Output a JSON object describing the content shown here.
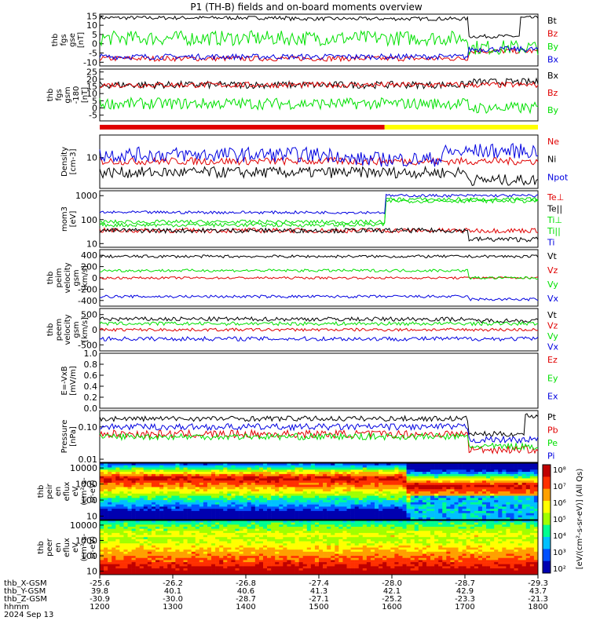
{
  "title": "P1 (TH-B) fields and on-board moments overview",
  "colors": {
    "black": "#000000",
    "red": "#e00000",
    "green": "#00e000",
    "blue": "#0000e0",
    "yellow": "#ffff00"
  },
  "chart_data": [
    {
      "type": "line",
      "ylabel": [
        "thb",
        "fgs",
        "gse",
        "[nT]"
      ],
      "yticks": [
        "15",
        "10",
        "5",
        "0",
        "-5",
        "-10"
      ],
      "ylim": [
        -12,
        16
      ],
      "series": [
        {
          "name": "Bt",
          "color": "#000000",
          "segments": [
            [
              0,
              0.43,
              14
            ],
            [
              0.43,
              0.84,
              13.5
            ],
            [
              0.84,
              0.96,
              4
            ],
            [
              0.96,
              1,
              14
            ]
          ],
          "noise": 1
        },
        {
          "name": "Bz",
          "color": "#e00000",
          "segments": [
            [
              0,
              0.84,
              -8
            ],
            [
              0.84,
              1,
              -4
            ]
          ],
          "noise": 1.4
        },
        {
          "name": "By",
          "color": "#00e000",
          "segments": [
            [
              0,
              0.84,
              3
            ],
            [
              0.84,
              1,
              -2
            ]
          ],
          "noise": 4
        },
        {
          "name": "Bx",
          "color": "#0000e0",
          "segments": [
            [
              0,
              0.84,
              -7
            ],
            [
              0.84,
              1,
              -3
            ]
          ],
          "noise": 1.5
        }
      ]
    },
    {
      "type": "line",
      "ylabel": [
        "thb",
        "fgs",
        "gsm",
        "-180",
        "[nT]"
      ],
      "yticks": [
        "25",
        "20",
        "15",
        "10",
        "5",
        "0",
        "-5"
      ],
      "ylim": [
        -9,
        27
      ],
      "series": [
        {
          "name": "Bx",
          "color": "#000000",
          "segments": [
            [
              0,
              0.84,
              16
            ],
            [
              0.84,
              1,
              18
            ]
          ],
          "noise": 2.5
        },
        {
          "name": "Bz",
          "color": "#e00000",
          "segments": [
            [
              0,
              1,
              16
            ]
          ],
          "noise": 2
        },
        {
          "name": "By",
          "color": "#00e000",
          "segments": [
            [
              0,
              0.84,
              3
            ],
            [
              0.84,
              1,
              0
            ]
          ],
          "noise": 4
        }
      ]
    },
    {
      "type": "line",
      "ylabel": [
        "Density",
        "[cm-3]"
      ],
      "yticks": [
        "10"
      ],
      "log": true,
      "ylim": [
        1.5,
        40
      ],
      "series": [
        {
          "name": "Ne",
          "color": "#e00000",
          "segments": [
            [
              0,
              0.84,
              8
            ],
            [
              0.84,
              1,
              8
            ]
          ],
          "noise": 0.1
        },
        {
          "name": "Ni",
          "color": "#000000",
          "segments": [
            [
              0,
              0.84,
              4
            ],
            [
              0.84,
              1,
              2.5
            ]
          ],
          "noise": 0.15
        },
        {
          "name": "Npot",
          "color": "#0000e0",
          "segments": [
            [
              0,
              0.55,
              12
            ],
            [
              0.55,
              0.78,
              9
            ],
            [
              0.78,
              0.84,
              14
            ],
            [
              0.84,
              1,
              15
            ]
          ],
          "noise": 0.2
        }
      ]
    },
    {
      "type": "line",
      "ylabel": [
        "mom3",
        "[eV]"
      ],
      "yticks": [
        "1000",
        "100",
        "10"
      ],
      "log": true,
      "ylim": [
        7,
        1600
      ],
      "series": [
        {
          "name": "Te⊥",
          "color": "#e00000",
          "segments": [
            [
              0,
              1,
              35
            ]
          ],
          "noise": 0.1
        },
        {
          "name": "Te||",
          "color": "#000000",
          "segments": [
            [
              0,
              0.84,
              35
            ],
            [
              0.84,
              1,
              15
            ]
          ],
          "noise": 0.1
        },
        {
          "name": "Ti⊥",
          "color": "#00e000",
          "segments": [
            [
              0,
              0.65,
              80
            ],
            [
              0.65,
              1,
              700
            ]
          ],
          "noise": 0.08
        },
        {
          "name": "Ti||",
          "color": "#00e000",
          "segments": [
            [
              0,
              0.65,
              60
            ],
            [
              0.65,
              1,
              600
            ]
          ],
          "noise": 0.08
        },
        {
          "name": "Ti",
          "color": "#0000e0",
          "segments": [
            [
              0,
              0.65,
              200
            ],
            [
              0.65,
              1,
              1000
            ]
          ],
          "noise": 0.06
        }
      ]
    },
    {
      "type": "line",
      "ylabel": [
        "thb",
        "peim",
        "velocity",
        "gsm",
        "[km/s]"
      ],
      "yticks": [
        "400",
        "200",
        "0",
        "-200",
        "-400"
      ],
      "ylim": [
        -500,
        500
      ],
      "series": [
        {
          "name": "Vt",
          "color": "#000000",
          "segments": [
            [
              0,
              1,
              380
            ]
          ],
          "noise": 25
        },
        {
          "name": "Vz",
          "color": "#e00000",
          "segments": [
            [
              0,
              1,
              0
            ]
          ],
          "noise": 20
        },
        {
          "name": "Vy",
          "color": "#00e000",
          "segments": [
            [
              0,
              0.84,
              130
            ],
            [
              0.84,
              1,
              0
            ]
          ],
          "noise": 25
        },
        {
          "name": "Vx",
          "color": "#0000e0",
          "segments": [
            [
              0,
              0.84,
              -330
            ],
            [
              0.84,
              1,
              -380
            ]
          ],
          "noise": 25
        }
      ]
    },
    {
      "type": "line",
      "ylabel": [
        "thb",
        "peem",
        "velocity",
        "gsm",
        "[km/s]"
      ],
      "yticks": [
        "500",
        "0",
        "-500"
      ],
      "ylim": [
        -700,
        700
      ],
      "series": [
        {
          "name": "Vt",
          "color": "#000000",
          "segments": [
            [
              0,
              0.84,
              350
            ],
            [
              0.84,
              1,
              300
            ]
          ],
          "noise": 70
        },
        {
          "name": "Vz",
          "color": "#e00000",
          "segments": [
            [
              0,
              1,
              0
            ]
          ],
          "noise": 50
        },
        {
          "name": "Vy",
          "color": "#00e000",
          "segments": [
            [
              0,
              0.84,
              200
            ],
            [
              0.84,
              1,
              200
            ]
          ],
          "noise": 60
        },
        {
          "name": "Vx",
          "color": "#0000e0",
          "segments": [
            [
              0,
              0.84,
              -300
            ],
            [
              0.84,
              1,
              -300
            ]
          ],
          "noise": 70
        }
      ]
    },
    {
      "type": "line",
      "ylabel": [
        "E=-VxB",
        "[mV/m]"
      ],
      "yticks": [
        "1.0",
        "0.8",
        "0.6",
        "0.4",
        "0.2",
        "0.0"
      ],
      "ylim": [
        0,
        1
      ],
      "series": [
        {
          "name": "Ez",
          "color": "#e00000"
        },
        {
          "name": "Ey",
          "color": "#00e000"
        },
        {
          "name": "Ex",
          "color": "#0000e0"
        }
      ]
    },
    {
      "type": "line",
      "ylabel": [
        "Pressure",
        "[nPa]"
      ],
      "yticks": [
        "0.10",
        "0.01"
      ],
      "log": true,
      "ylim": [
        0.008,
        0.32
      ],
      "series": [
        {
          "name": "Pt",
          "color": "#000000",
          "segments": [
            [
              0,
              0.84,
              0.18
            ],
            [
              0.84,
              0.97,
              0.06
            ],
            [
              0.97,
              1,
              0.22
            ]
          ],
          "noise": 0.08
        },
        {
          "name": "Pb",
          "color": "#e00000",
          "segments": [
            [
              0,
              0.84,
              0.06
            ],
            [
              0.84,
              1,
              0.02
            ]
          ],
          "noise": 0.12
        },
        {
          "name": "Pe",
          "color": "#00e000",
          "segments": [
            [
              0,
              0.84,
              0.05
            ],
            [
              0.84,
              1,
              0.025
            ]
          ],
          "noise": 0.1
        },
        {
          "name": "Pi",
          "color": "#0000e0",
          "segments": [
            [
              0,
              0.84,
              0.1
            ],
            [
              0.84,
              1,
              0.04
            ]
          ],
          "noise": 0.1
        }
      ]
    },
    {
      "type": "heatmap",
      "ylabel": [
        "thb",
        "peir",
        "en",
        "eflux",
        "eV",
        "(cm²-s-",
        "sr-eV)"
      ],
      "yticks": [
        "10000",
        "1000",
        "100",
        "10"
      ],
      "log": true,
      "ylim": [
        6,
        20000
      ]
    },
    {
      "type": "heatmap",
      "ylabel": [
        "thb",
        "peer",
        "en",
        "eflux",
        "eV",
        "(cm²-s-",
        "sr-eV)"
      ],
      "yticks": [
        "10000",
        "1000",
        "100",
        "10"
      ],
      "log": true,
      "ylim": [
        6,
        20000
      ]
    }
  ],
  "colorbar": {
    "label": "[eV/(cm²-s-sr-eV)] (All Qs)",
    "ticks": [
      "10⁸",
      "10⁷",
      "10⁶",
      "10⁵",
      "10⁴",
      "10³",
      "10²"
    ]
  },
  "orbit": {
    "rows": [
      {
        "name": "thb_X-GSM",
        "values": [
          "-25.6",
          "-26.2",
          "-26.8",
          "-27.4",
          "-28.0",
          "-28.7",
          "-29.3"
        ]
      },
      {
        "name": "thb_Y-GSM",
        "values": [
          "39.8",
          "40.1",
          "40.6",
          "41.3",
          "42.1",
          "42.9",
          "43.7"
        ]
      },
      {
        "name": "thb_Z-GSM",
        "values": [
          "-30.9",
          "-30.0",
          "-28.7",
          "-27.1",
          "-25.2",
          "-23.3",
          "-21.3"
        ]
      },
      {
        "name": "hhmm",
        "values": [
          "1200",
          "1300",
          "1400",
          "1500",
          "1600",
          "1700",
          "1800"
        ]
      }
    ],
    "date": "2024 Sep 13"
  },
  "mode_bar": {
    "colors": [
      "#e00000",
      "#ffff00"
    ],
    "split": 0.65
  }
}
